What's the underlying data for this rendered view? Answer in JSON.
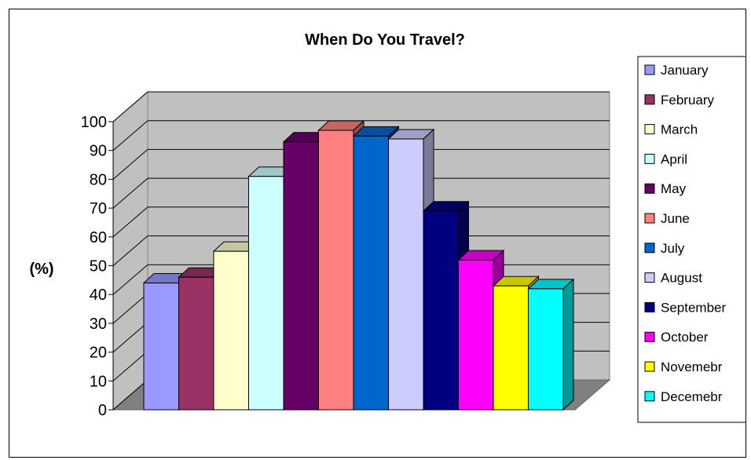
{
  "chart_data": {
    "type": "bar",
    "title": "When Do You Travel?",
    "xlabel": "",
    "ylabel": "(%)",
    "ylim": [
      0,
      100
    ],
    "yticks": [
      0,
      10,
      20,
      30,
      40,
      50,
      60,
      70,
      80,
      90,
      100
    ],
    "grid": true,
    "three_d": true,
    "legend_position": "right",
    "series": [
      {
        "name": "January",
        "value": 44,
        "color": "#9999FF"
      },
      {
        "name": "February",
        "value": 46,
        "color": "#993366"
      },
      {
        "name": "March",
        "value": 55,
        "color": "#FFFFCC"
      },
      {
        "name": "April",
        "value": 81,
        "color": "#CCFFFF"
      },
      {
        "name": "May",
        "value": 93,
        "color": "#660066"
      },
      {
        "name": "June",
        "value": 97,
        "color": "#FF8080"
      },
      {
        "name": "July",
        "value": 95,
        "color": "#0066CC"
      },
      {
        "name": "August",
        "value": 94,
        "color": "#CCCCFF"
      },
      {
        "name": "September",
        "value": 69,
        "color": "#000080"
      },
      {
        "name": "October",
        "value": 52,
        "color": "#FF00FF"
      },
      {
        "name": "Novemebr",
        "value": 43,
        "color": "#FFFF00"
      },
      {
        "name": "Decemebr",
        "value": 42,
        "color": "#00FFFF"
      }
    ]
  },
  "colors": {
    "wall": "#C0C0C0",
    "floor": "#808080",
    "gridline": "#000000"
  }
}
